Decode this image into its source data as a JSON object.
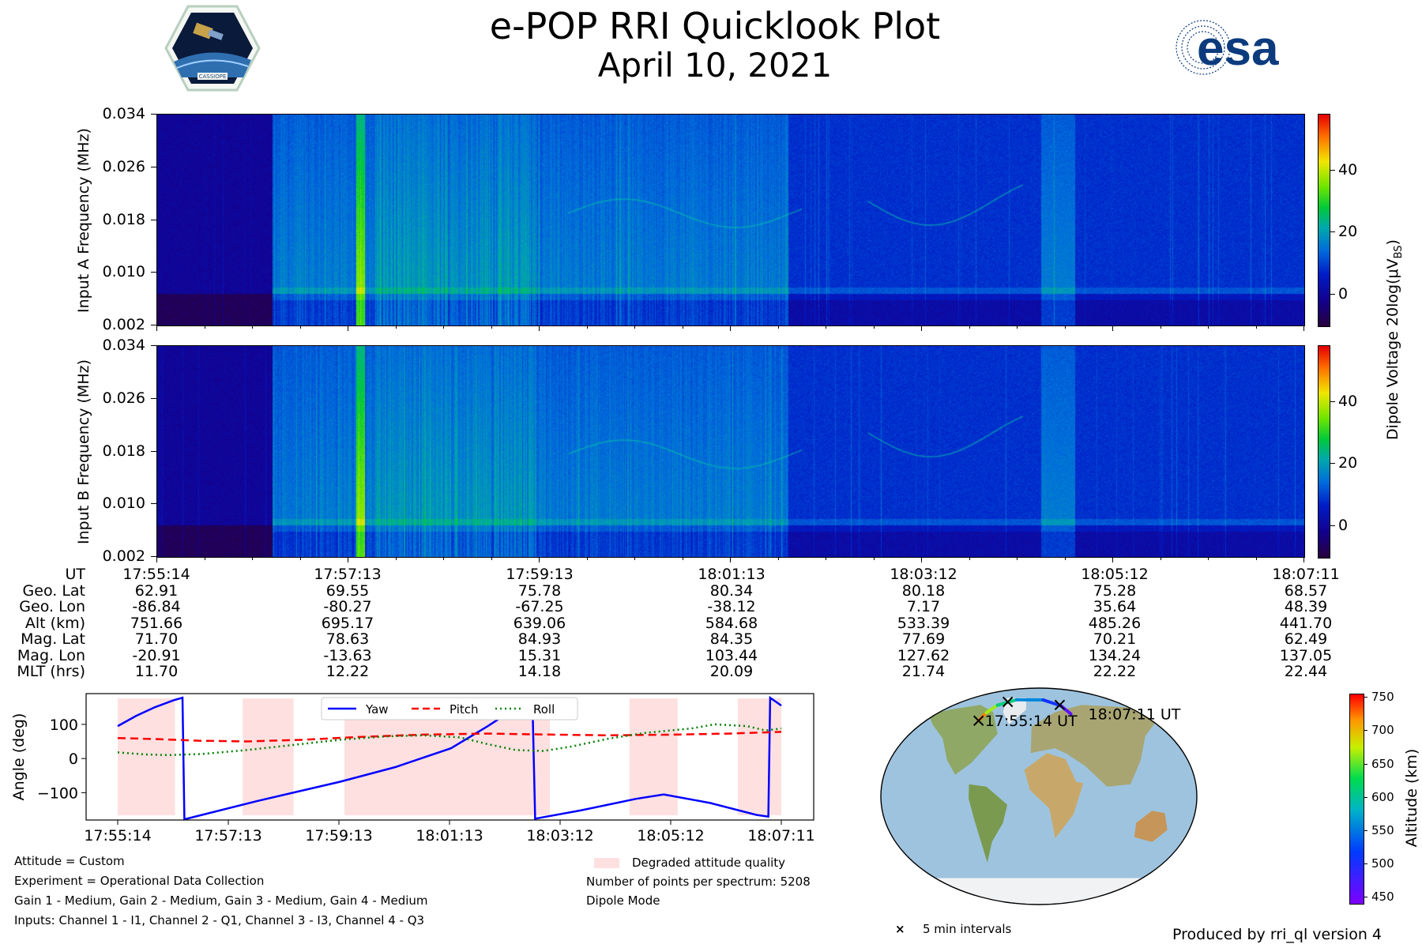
{
  "header": {
    "title": "e-POP RRI Quicklook Plot",
    "date": "April 10, 2021",
    "left_logo": "cassiope-mission-logo",
    "left_logo_text": "CASSIOPE",
    "right_logo_text": "esa"
  },
  "chart_data": [
    {
      "id": "input-a",
      "type": "heatmap",
      "ylabel": "Input A Frequency (MHz)",
      "yticks": [
        "0.002",
        "0.010",
        "0.018",
        "0.026",
        "0.034"
      ],
      "ylim": [
        0.002,
        0.034
      ],
      "colorbar": {
        "range": [
          -10,
          58
        ],
        "ticks": [
          0,
          20,
          40
        ]
      }
    },
    {
      "id": "input-b",
      "type": "heatmap",
      "ylabel": "Input B Frequency (MHz)",
      "yticks": [
        "0.002",
        "0.010",
        "0.018",
        "0.026",
        "0.034"
      ],
      "ylim": [
        0.002,
        0.034
      ],
      "colorbar": {
        "range": [
          -10,
          58
        ],
        "ticks": [
          0,
          20,
          40
        ]
      }
    },
    {
      "id": "attitude",
      "type": "line",
      "ylabel": "Angle (deg)",
      "yticks": [
        100,
        0,
        -100
      ],
      "ylim": [
        -180,
        190
      ],
      "x_ticks": [
        "17:55:14",
        "17:57:13",
        "17:59:13",
        "18:01:13",
        "18:03:12",
        "18:05:12",
        "18:07:11"
      ],
      "x_range_sec": [
        0,
        717
      ],
      "degraded_intervals_sec": [
        [
          0,
          62
        ],
        [
          135,
          190
        ],
        [
          245,
          467
        ],
        [
          553,
          605
        ],
        [
          670,
          717
        ]
      ],
      "series": [
        {
          "name": "Yaw",
          "color": "#0000ff",
          "style": "solid",
          "points": [
            [
              0,
              95
            ],
            [
              20,
              125
            ],
            [
              40,
              150
            ],
            [
              60,
              170
            ],
            [
              70,
              178
            ],
            [
              72,
              -178
            ],
            [
              150,
              -125
            ],
            [
              240,
              -68
            ],
            [
              300,
              -25
            ],
            [
              360,
              30
            ],
            [
              400,
              95
            ],
            [
              430,
              148
            ],
            [
              448,
              175
            ],
            [
              451,
              -176
            ],
            [
              500,
              -152
            ],
            [
              560,
              -118
            ],
            [
              590,
              -105
            ],
            [
              640,
              -130
            ],
            [
              690,
              -165
            ],
            [
              703,
              -170
            ],
            [
              705,
              178
            ],
            [
              717,
              155
            ]
          ]
        },
        {
          "name": "Pitch",
          "color": "#ff0000",
          "style": "dashed",
          "points": [
            [
              0,
              60
            ],
            [
              40,
              57
            ],
            [
              90,
              52
            ],
            [
              140,
              50
            ],
            [
              200,
              55
            ],
            [
              260,
              63
            ],
            [
              330,
              70
            ],
            [
              400,
              73
            ],
            [
              470,
              70
            ],
            [
              530,
              68
            ],
            [
              600,
              70
            ],
            [
              660,
              73
            ],
            [
              717,
              78
            ]
          ]
        },
        {
          "name": "Roll",
          "color": "#008000",
          "style": "dotted",
          "points": [
            [
              0,
              18
            ],
            [
              30,
              12
            ],
            [
              55,
              10
            ],
            [
              90,
              13
            ],
            [
              140,
              25
            ],
            [
              190,
              40
            ],
            [
              240,
              55
            ],
            [
              290,
              65
            ],
            [
              330,
              68
            ],
            [
              370,
              62
            ],
            [
              400,
              42
            ],
            [
              430,
              25
            ],
            [
              460,
              22
            ],
            [
              490,
              35
            ],
            [
              530,
              58
            ],
            [
              570,
              75
            ],
            [
              620,
              88
            ],
            [
              645,
              100
            ],
            [
              680,
              95
            ],
            [
              700,
              82
            ],
            [
              717,
              88
            ]
          ]
        }
      ],
      "legend": [
        "Yaw",
        "Pitch",
        "Roll"
      ]
    },
    {
      "id": "orbit-map",
      "type": "scatter",
      "start_label": "17:55:14 UT",
      "end_label": "18:07:11 UT",
      "colorbar_label": "Altitude (km)",
      "colorbar_ticks": [
        450,
        500,
        550,
        600,
        650,
        700,
        750
      ],
      "colorbar_range": [
        441,
        755
      ],
      "marker_legend": "5 min intervals",
      "track_lonlat": [
        [
          -86.84,
          62.91
        ],
        [
          -80.27,
          69.55
        ],
        [
          -67.25,
          75.78
        ],
        [
          -38.12,
          80.34
        ],
        [
          7.17,
          80.18
        ],
        [
          35.64,
          75.28
        ],
        [
          48.39,
          68.57
        ]
      ],
      "track_alt_km": [
        751.66,
        695.17,
        639.06,
        584.68,
        533.39,
        485.26,
        441.7
      ],
      "marker_lonlat": [
        [
          -86.84,
          62.91
        ],
        [
          -52.0,
          78.5
        ],
        [
          34.0,
          76.0
        ]
      ]
    }
  ],
  "spectrogram": {
    "colorbar_title": "Dipole Voltage 20log(μV",
    "colorbar_title_sub": "BS",
    "colorbar_title_end": ")"
  },
  "ephemeris": {
    "labels": [
      "UT",
      "Geo. Lat",
      "Geo. Lon",
      "Alt (km)",
      "Mag. Lat",
      "Mag. Lon",
      "MLT (hrs)"
    ],
    "columns": [
      [
        "17:55:14",
        "62.91",
        "-86.84",
        "751.66",
        "71.70",
        "-20.91",
        "11.70"
      ],
      [
        "17:57:13",
        "69.55",
        "-80.27",
        "695.17",
        "78.63",
        "-13.63",
        "12.22"
      ],
      [
        "17:59:13",
        "75.78",
        "-67.25",
        "639.06",
        "84.93",
        "15.31",
        "14.18"
      ],
      [
        "18:01:13",
        "80.34",
        "-38.12",
        "584.68",
        "84.35",
        "103.44",
        "20.09"
      ],
      [
        "18:03:12",
        "80.18",
        "7.17",
        "533.39",
        "77.69",
        "127.62",
        "21.74"
      ],
      [
        "18:05:12",
        "75.28",
        "35.64",
        "485.26",
        "70.21",
        "134.24",
        "22.22"
      ],
      [
        "18:07:11",
        "68.57",
        "48.39",
        "441.70",
        "62.49",
        "137.05",
        "22.44"
      ]
    ]
  },
  "footer": {
    "attitude": "Attitude = Custom",
    "experiment": "Experiment = Operational Data Collection",
    "gains": "Gain 1 - Medium, Gain 2 - Medium, Gain 3 - Medium, Gain 4 - Medium",
    "inputs": "Inputs: Channel 1 - I1, Channel 2 - Q1, Channel 3 - I3, Channel 4 - Q3",
    "degraded_legend": "Degraded attitude quality",
    "points": "Number of points per spectrum: 5208",
    "mode": "Dipole Mode",
    "produced_by": "Produced by rri_ql version 4"
  }
}
